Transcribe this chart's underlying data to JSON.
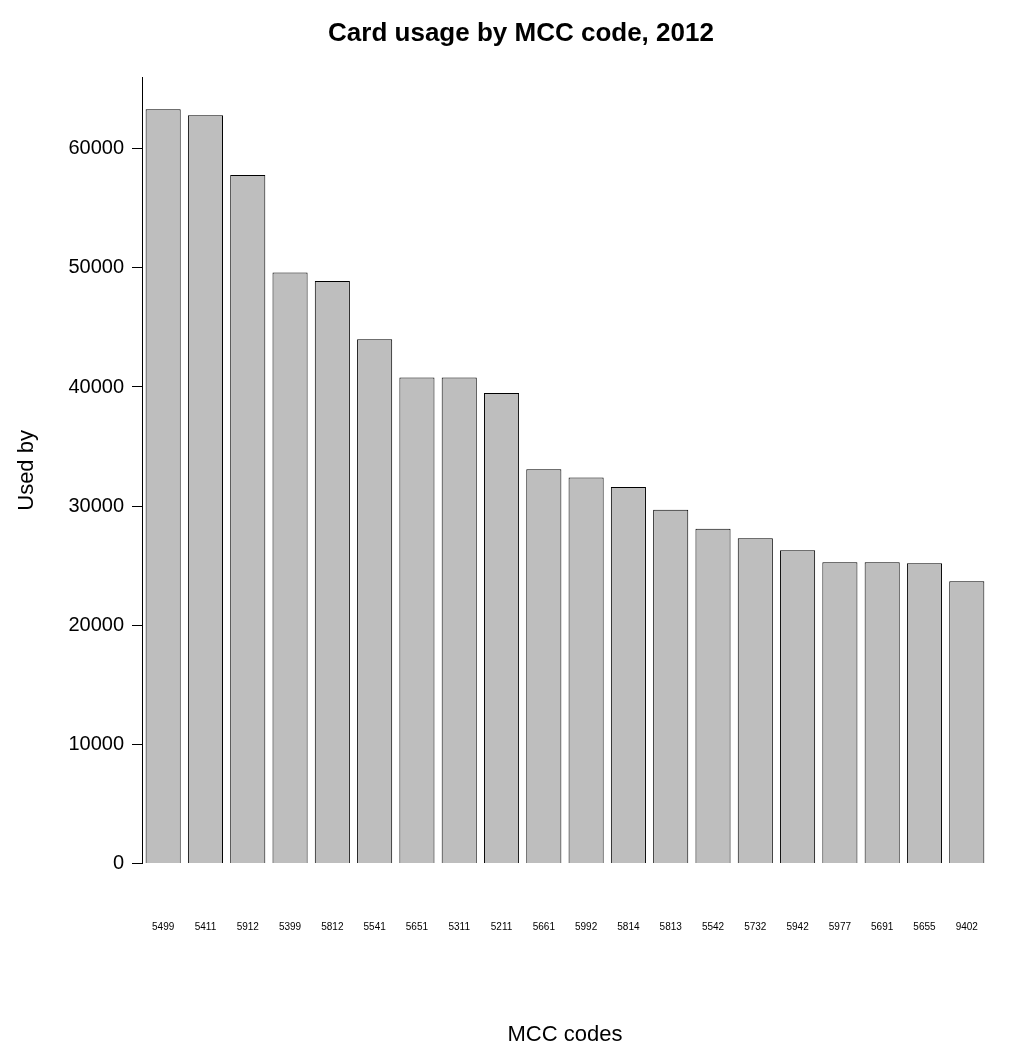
{
  "chart_data": {
    "type": "bar",
    "title": "Card usage by MCC code, 2012",
    "xlabel": "MCC codes",
    "ylabel": "Used by",
    "categories": [
      "5499",
      "5411",
      "5912",
      "5399",
      "5812",
      "5541",
      "5651",
      "5311",
      "5211",
      "5661",
      "5992",
      "5814",
      "5813",
      "5542",
      "5732",
      "5942",
      "5977",
      "5691",
      "5655",
      "9402"
    ],
    "values": [
      63300,
      62800,
      57800,
      49600,
      48900,
      44000,
      40800,
      40800,
      39500,
      33100,
      32400,
      31600,
      29700,
      28100,
      27300,
      26300,
      25300,
      25300,
      25200,
      23700
    ],
    "color": "#bebebe",
    "ylim": [
      0,
      66000
    ],
    "yticks": [
      0,
      10000,
      20000,
      30000,
      40000,
      50000,
      60000
    ],
    "grid": false,
    "legend": false
  }
}
